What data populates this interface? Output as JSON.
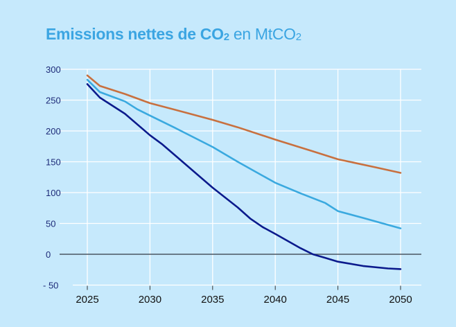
{
  "chart_data": {
    "type": "line",
    "title": "Emissions nettes de CO₂ en MtCO₂",
    "title_parts": {
      "bold": "Emissions nettes de CO",
      "bold_sub": "2",
      "light": " en MtCO",
      "light_sub": "2"
    },
    "xlabel": "",
    "ylabel": "",
    "xlim": [
      2025,
      2050
    ],
    "ylim": [
      -50,
      300
    ],
    "x_ticks": [
      2025,
      2030,
      2035,
      2040,
      2045,
      2050
    ],
    "y_ticks": [
      300,
      250,
      200,
      150,
      100,
      50,
      0,
      -50
    ],
    "y_tick_labels": [
      "300",
      "250",
      "200",
      "150",
      "100",
      "50",
      "0",
      "- 50"
    ],
    "grid": true,
    "legend": "none",
    "zero_line_color": "#4a5560",
    "series": [
      {
        "color": "#c8703f",
        "x": [
          2025,
          2026,
          2028,
          2030,
          2033,
          2035,
          2037,
          2040,
          2043,
          2045,
          2048,
          2050
        ],
        "y": [
          290,
          273,
          260,
          245,
          229,
          218,
          206,
          186,
          167,
          154,
          141,
          132
        ]
      },
      {
        "color": "#3aa9df",
        "x": [
          2025,
          2026,
          2028,
          2029,
          2030,
          2032,
          2035,
          2037,
          2040,
          2042,
          2044,
          2045,
          2047,
          2050
        ],
        "y": [
          283,
          263,
          248,
          235,
          225,
          205,
          174,
          150,
          116,
          99,
          83,
          70,
          59,
          42
        ]
      },
      {
        "color": "#0b1a8c",
        "x": [
          2025,
          2026,
          2028,
          2030,
          2031,
          2035,
          2037,
          2038,
          2039,
          2040,
          2042,
          2043,
          2044,
          2045,
          2047,
          2049,
          2050
        ],
        "y": [
          276,
          254,
          228,
          193,
          178,
          108,
          76,
          58,
          44,
          33,
          10,
          0,
          -6,
          -12,
          -19,
          -23,
          -24
        ]
      }
    ]
  }
}
